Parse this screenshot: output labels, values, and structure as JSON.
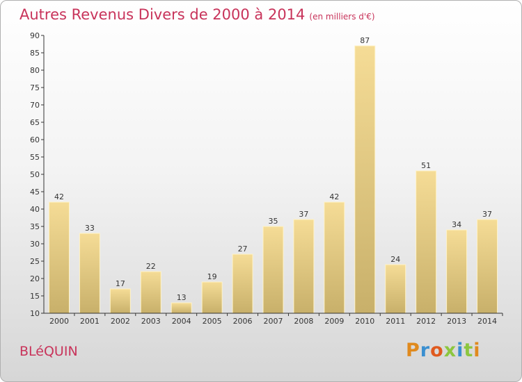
{
  "header": {
    "title": "Autres Revenus Divers de 2000 à 2014",
    "subtitle": "(en milliers d'€)"
  },
  "footer": {
    "town": "BLéQUIN",
    "brand": [
      "P",
      "r",
      "o",
      "x",
      "i",
      "t",
      "i"
    ]
  },
  "colors": {
    "title": "#c8335a",
    "bar_light": "#f5dc96",
    "bar_dark": "#c8b06a",
    "axis": "#333333"
  },
  "chart_data": {
    "type": "bar",
    "title": "Autres Revenus Divers de 2000 à 2014",
    "subtitle": "(en milliers d'€)",
    "xlabel": "",
    "ylabel": "",
    "categories": [
      "2000",
      "2001",
      "2002",
      "2003",
      "2004",
      "2005",
      "2006",
      "2007",
      "2008",
      "2009",
      "2010",
      "2011",
      "2012",
      "2013",
      "2014"
    ],
    "values": [
      42,
      33,
      17,
      22,
      13,
      19,
      27,
      35,
      37,
      42,
      87,
      24,
      51,
      34,
      37
    ],
    "ylim": [
      10,
      90
    ],
    "yticks": [
      10,
      15,
      20,
      25,
      30,
      35,
      40,
      45,
      50,
      55,
      60,
      65,
      70,
      75,
      80,
      85,
      90
    ],
    "grid": false,
    "legend": "none"
  }
}
